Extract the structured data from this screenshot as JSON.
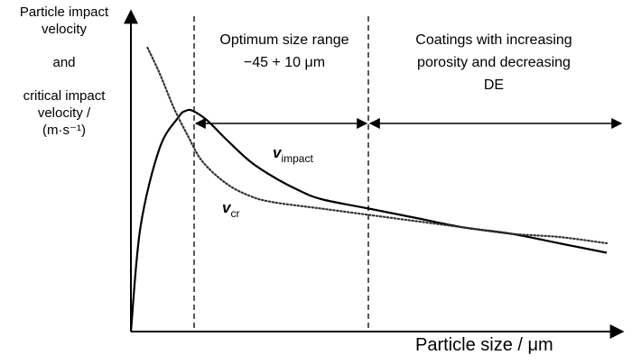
{
  "chart_data": {
    "type": "line",
    "ylabel_lines": [
      "Particle impact",
      "velocity",
      "and",
      "critical impact",
      "velocity /",
      "(m·s⁻¹)"
    ],
    "xlabel": "Particle size / μm",
    "regions": {
      "optimum": [
        "Optimum size range",
        "−45 + 10 μm"
      ],
      "coatings": [
        "Coatings with increasing",
        "porosity and decreasing",
        "DE"
      ]
    },
    "series": [
      {
        "name_main": "v",
        "name_sub": "impact",
        "style": "solid",
        "x": [
          0,
          0.02,
          0.06,
          0.1,
          0.115,
          0.13,
          0.16,
          0.2,
          0.25,
          0.3,
          0.35,
          0.4,
          0.5,
          0.6,
          0.7,
          0.8,
          0.9,
          1.0
        ],
        "y": [
          0,
          0.33,
          0.58,
          0.68,
          0.7,
          0.7,
          0.67,
          0.61,
          0.54,
          0.49,
          0.45,
          0.42,
          0.39,
          0.36,
          0.33,
          0.31,
          0.28,
          0.25
        ]
      },
      {
        "name_main": "v",
        "name_sub": "cr",
        "style": "dotted",
        "x": [
          0.035,
          0.06,
          0.09,
          0.12,
          0.15,
          0.2,
          0.25,
          0.3,
          0.4,
          0.5,
          0.6,
          0.7,
          0.8,
          0.9,
          1.0
        ],
        "y": [
          0.9,
          0.82,
          0.71,
          0.62,
          0.54,
          0.47,
          0.43,
          0.41,
          0.39,
          0.37,
          0.35,
          0.33,
          0.31,
          0.3,
          0.28
        ]
      }
    ],
    "boundaries": [
      0.13,
      0.49
    ],
    "colors": {
      "axis": "#000000",
      "line": "#000000",
      "dotted": "#333333"
    }
  }
}
